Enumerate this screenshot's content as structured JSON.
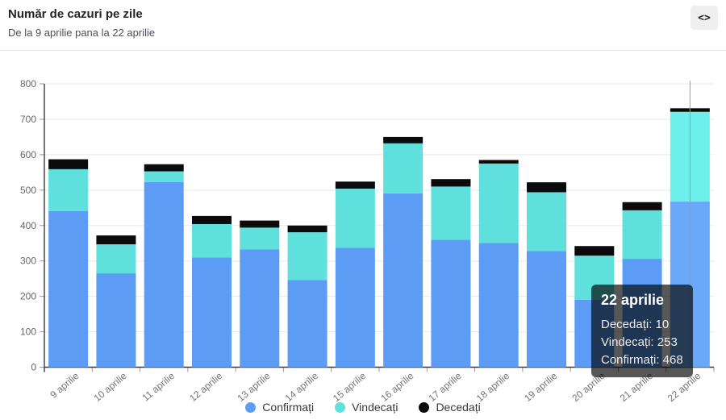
{
  "header": {
    "title": "Număr de cazuri pe zile",
    "subtitle": "De la 9 aprilie pana la 22 aprilie",
    "embed_icon_glyph": "<>"
  },
  "tooltip": {
    "title": "22 aprilie",
    "lines": [
      "Decedați: 10",
      "Vindecați: 253",
      "Confirmați: 468"
    ]
  },
  "colors": {
    "confirmed_blue": "#5d9cf5",
    "recovered_teal": "#5fe0dc",
    "deceased_black": "#0b0b0b",
    "hover_blue": "#69a9f8",
    "hover_teal": "#6df0ec",
    "grid": "#e8e8ea",
    "axis": "#3a3a40",
    "tick": "#9a9aa0",
    "crosshair": "#9b9b9b",
    "tooltip_bg": "rgba(0,0,0,0.66)"
  },
  "chart_data": {
    "type": "bar",
    "stacked": true,
    "title": "Număr de cazuri pe zile",
    "subtitle": "De la 9 aprilie pana la 22 aprilie",
    "xlabel": "",
    "ylabel": "",
    "ylim": [
      0,
      800
    ],
    "ytick_step": 100,
    "grid": true,
    "legend_position": "bottom",
    "hovered_index": 13,
    "categories": [
      "9 aprilie",
      "10 aprilie",
      "11 aprilie",
      "12 aprilie",
      "13 aprilie",
      "14 aprilie",
      "15 aprilie",
      "16 aprilie",
      "17 aprilie",
      "18 aprilie",
      "19 aprilie",
      "20 aprilie",
      "21 aprilie",
      "22 aprilie"
    ],
    "series": [
      {
        "name": "Confirmați",
        "color": "#5d9cf5",
        "hover_color": "#69a9f8",
        "values": [
          441,
          265,
          523,
          310,
          333,
          246,
          337,
          491,
          360,
          351,
          328,
          190,
          306,
          468
        ]
      },
      {
        "name": "Vindecați",
        "color": "#5fe0dc",
        "hover_color": "#6df0ec",
        "values": [
          118,
          82,
          30,
          94,
          61,
          135,
          167,
          141,
          150,
          224,
          166,
          125,
          137,
          253
        ]
      },
      {
        "name": "Decedați",
        "color": "#0b0b0b",
        "hover_color": "#0b0b0b",
        "values": [
          28,
          25,
          20,
          23,
          20,
          19,
          20,
          18,
          21,
          10,
          28,
          27,
          23,
          10
        ]
      }
    ]
  }
}
